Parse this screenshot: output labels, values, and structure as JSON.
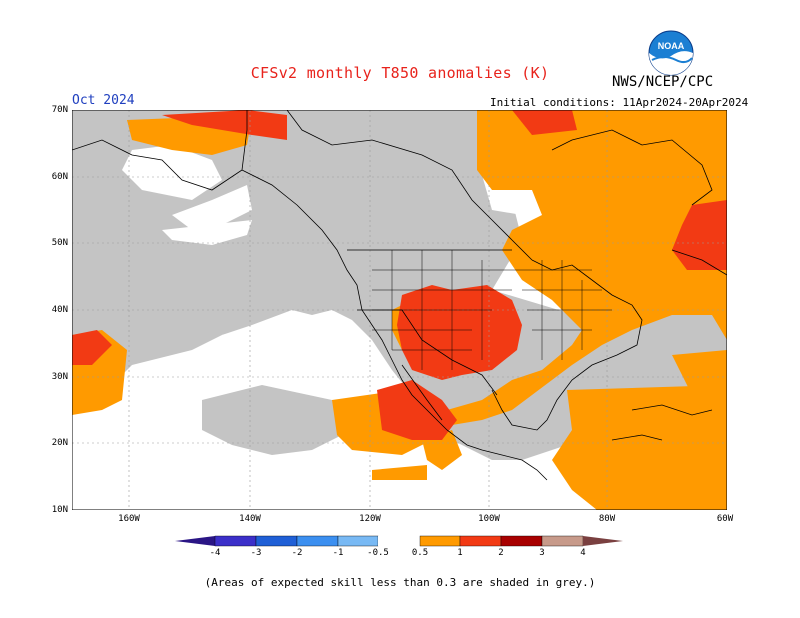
{
  "header": {
    "title": "CFSv2 monthly T850 anomalies (K)",
    "agency": "NWS/NCEP/CPC",
    "logo_text": "NOAA",
    "month": "Oct 2024",
    "initial_conditions": "Initial conditions: 11Apr2024-20Apr2024"
  },
  "map": {
    "lat_labels": [
      "70N",
      "60N",
      "50N",
      "40N",
      "30N",
      "20N",
      "10N"
    ],
    "lon_labels": [
      "160W",
      "140W",
      "120W",
      "100W",
      "80W",
      "60W"
    ],
    "region": "North America"
  },
  "colorbar": {
    "labels": [
      "-4",
      "-3",
      "-2",
      "-1",
      "-0.5",
      "0.5",
      "1",
      "2",
      "3",
      "4"
    ],
    "colors": {
      "lt_-4": "#2a1585",
      "-4_-3": "#3b2fc9",
      "-3_-2": "#1f5fd6",
      "-2_-1": "#3b8ff0",
      "-1_-0.5": "#78b9f4",
      "-0.5_0.5": "#ffffff",
      "0.5_1": "#ff9a00",
      "1_2": "#f23a14",
      "2_3": "#a80000",
      "3_4": "#c79a8a",
      "gt_4": "#7a4040"
    }
  },
  "colors": {
    "grey_skill": "#c4c4c4",
    "orange": "#ff9a00",
    "red": "#f23a14",
    "title_red": "#e8231c",
    "month_blue": "#1f3fbf"
  },
  "footnote": "(Areas of expected skill less than 0.3 are shaded in grey.)"
}
